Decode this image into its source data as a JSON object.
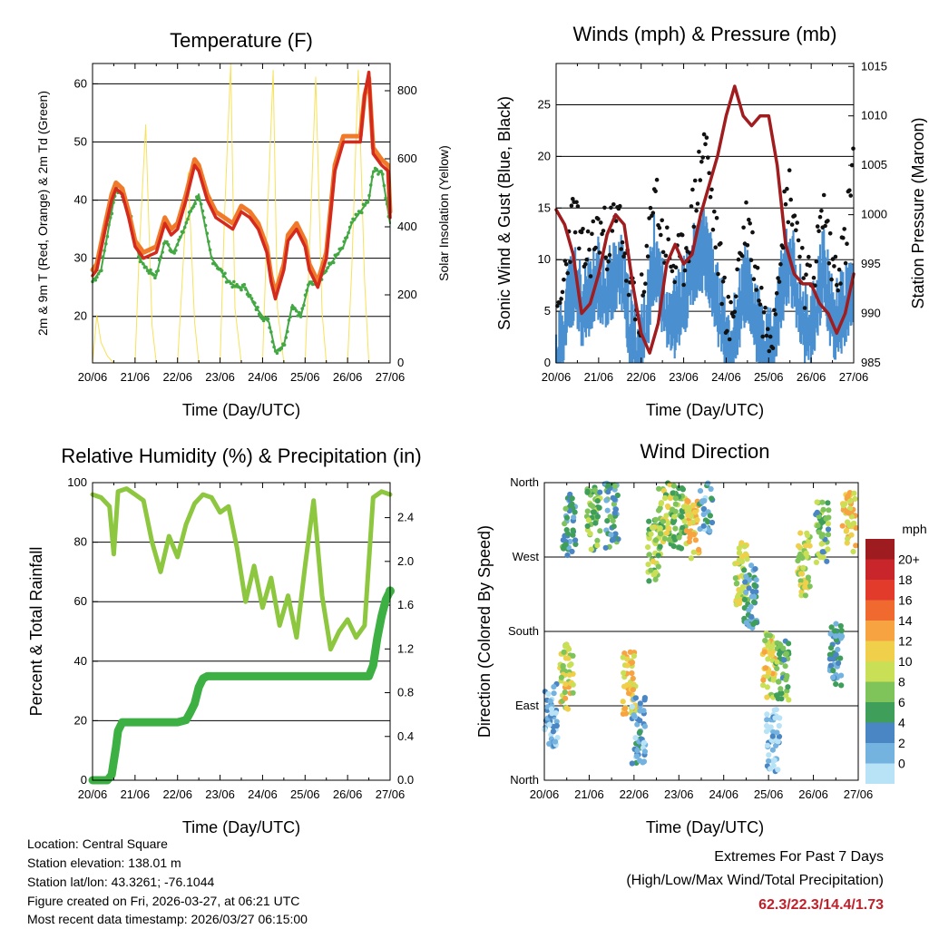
{
  "chart_data": [
    {
      "type": "line",
      "title": "Temperature (F)",
      "xlabel": "Time (Day/UTC)",
      "ylabel": "2m & 9m T (Red, Orange) & 2m Td (Green)",
      "ylabel_right": "Solar Insolation (Yellow)",
      "x_ticks": [
        "20/06",
        "21/06",
        "22/06",
        "23/06",
        "24/06",
        "25/06",
        "26/06",
        "27/06"
      ],
      "xlim": [
        0,
        7
      ],
      "ylim": [
        12,
        63.5
      ],
      "y_ticks": [
        20,
        30,
        40,
        50,
        60
      ],
      "ylim_right": [
        0,
        880
      ],
      "y_ticks_right": [
        0,
        200,
        400,
        600,
        800
      ],
      "series": [
        {
          "name": "2m T",
          "color": "#d42a1e",
          "x": [
            0,
            0.1,
            0.3,
            0.45,
            0.55,
            0.7,
            0.85,
            1.0,
            1.2,
            1.5,
            1.7,
            1.85,
            2.0,
            2.2,
            2.4,
            2.5,
            2.7,
            2.9,
            3.1,
            3.3,
            3.5,
            3.7,
            3.9,
            4.1,
            4.2,
            4.3,
            4.5,
            4.6,
            4.8,
            5.0,
            5.1,
            5.3,
            5.5,
            5.7,
            5.9,
            6.1,
            6.3,
            6.4,
            6.5,
            6.6,
            6.8,
            6.95,
            7.0
          ],
          "values": [
            27,
            28,
            35,
            40,
            42,
            41,
            37,
            32,
            30,
            31,
            36,
            34,
            35,
            40,
            46,
            45,
            40,
            37,
            36,
            35,
            38,
            37,
            35,
            31,
            26,
            23,
            28,
            33,
            35,
            32,
            28,
            25,
            30,
            45,
            50,
            50,
            50,
            58,
            62,
            48,
            46,
            45,
            37
          ]
        },
        {
          "name": "9m T",
          "color": "#f07a2a",
          "x": [
            0,
            0.1,
            0.3,
            0.45,
            0.55,
            0.7,
            0.85,
            1.0,
            1.2,
            1.5,
            1.7,
            1.85,
            2.0,
            2.2,
            2.4,
            2.5,
            2.7,
            2.9,
            3.1,
            3.3,
            3.5,
            3.7,
            3.9,
            4.1,
            4.2,
            4.3,
            4.5,
            4.6,
            4.8,
            5.0,
            5.1,
            5.3,
            5.5,
            5.7,
            5.9,
            6.1,
            6.3,
            6.4,
            6.5,
            6.6,
            6.8,
            6.95,
            7.0
          ],
          "values": [
            28,
            29,
            36,
            41,
            43,
            42,
            38,
            33,
            31,
            32,
            37,
            35,
            36,
            41,
            47,
            46,
            41,
            38,
            37,
            36,
            39,
            38,
            36,
            32,
            27,
            24,
            29,
            34,
            36,
            33,
            29,
            26,
            31,
            46,
            51,
            51,
            51,
            58,
            61,
            49,
            47,
            46,
            38
          ]
        },
        {
          "name": "2m Td",
          "color": "#43a843",
          "x": [
            0,
            0.2,
            0.4,
            0.55,
            0.7,
            0.9,
            1.1,
            1.3,
            1.5,
            1.7,
            1.9,
            2.1,
            2.3,
            2.5,
            2.8,
            3.0,
            3.2,
            3.4,
            3.6,
            3.8,
            4.0,
            4.15,
            4.3,
            4.5,
            4.7,
            4.9,
            5.1,
            5.3,
            5.5,
            5.7,
            5.9,
            6.1,
            6.3,
            6.5,
            6.6,
            6.8,
            7.0
          ],
          "values": [
            26,
            28,
            36,
            42,
            41,
            37,
            30,
            28,
            27,
            33,
            31,
            34,
            38,
            41,
            30,
            28,
            26,
            25,
            25,
            22,
            20,
            19,
            14,
            15,
            22,
            20,
            26,
            26,
            28,
            30,
            32,
            36,
            38,
            40,
            45,
            45,
            36
          ]
        },
        {
          "name": "Solar Insolation",
          "color": "#f8e15a",
          "axis": "right",
          "x": [
            0,
            0.1,
            0.2,
            0.35,
            0.5,
            1.0,
            1.1,
            1.25,
            1.4,
            1.5,
            2.0,
            2.1,
            2.25,
            2.4,
            2.5,
            3.0,
            3.1,
            3.25,
            3.35,
            3.5,
            4.0,
            4.1,
            4.25,
            4.35,
            4.5,
            5.0,
            5.1,
            5.25,
            5.4,
            5.5,
            6.0,
            6.1,
            6.25,
            6.4,
            6.5,
            7.0
          ],
          "values": [
            0,
            140,
            60,
            20,
            0,
            0,
            330,
            700,
            110,
            0,
            0,
            220,
            560,
            120,
            0,
            0,
            420,
            880,
            160,
            0,
            0,
            380,
            860,
            160,
            0,
            0,
            320,
            840,
            150,
            0,
            0,
            280,
            860,
            240,
            0,
            0
          ]
        }
      ]
    },
    {
      "type": "line",
      "title": "Winds (mph) & Pressure (mb)",
      "xlabel": "Time (Day/UTC)",
      "ylabel": "Sonic Wind & Gust (Blue, Black)",
      "ylabel_right": "Station Pressure (Maroon)",
      "x_ticks": [
        "20/06",
        "21/06",
        "22/06",
        "23/06",
        "24/06",
        "25/06",
        "26/06",
        "27/06"
      ],
      "xlim": [
        0,
        7
      ],
      "ylim": [
        0,
        29
      ],
      "y_ticks": [
        0,
        5,
        10,
        15,
        20,
        25
      ],
      "ylim_right": [
        985,
        1015.3
      ],
      "y_ticks_right": [
        985,
        990,
        995,
        1000,
        1005,
        1010,
        1015
      ],
      "series": [
        {
          "name": "Sonic Wind",
          "color": "#4a90d0",
          "x": [
            0,
            0.1,
            0.3,
            0.45,
            0.6,
            0.8,
            1.0,
            1.2,
            1.5,
            1.7,
            1.9,
            2.1,
            2.3,
            2.5,
            2.8,
            3.0,
            3.2,
            3.5,
            3.7,
            3.9,
            4.1,
            4.3,
            4.5,
            4.7,
            4.9,
            5.1,
            5.3,
            5.5,
            5.7,
            5.9,
            6.1,
            6.3,
            6.5,
            6.8,
            7.0
          ],
          "values": [
            1,
            3,
            7,
            9,
            6,
            7,
            9,
            8,
            10,
            5,
            2,
            4,
            11,
            7,
            5,
            7,
            10,
            12,
            8,
            5,
            1,
            6,
            9,
            5,
            2,
            2,
            8,
            11,
            7,
            4,
            6,
            10,
            5,
            6,
            9
          ]
        },
        {
          "name": "Gust",
          "color": "#111111",
          "x": [
            0,
            0.1,
            0.3,
            0.45,
            0.6,
            0.8,
            1.0,
            1.2,
            1.5,
            1.7,
            1.9,
            2.1,
            2.3,
            2.5,
            2.8,
            3.0,
            3.2,
            3.5,
            3.7,
            3.9,
            4.1,
            4.3,
            4.5,
            4.7,
            4.9,
            5.1,
            5.3,
            5.5,
            5.7,
            5.9,
            6.1,
            6.3,
            6.5,
            6.8,
            7.0
          ],
          "values": [
            2,
            5,
            12,
            15,
            10,
            11,
            13,
            12,
            14,
            8,
            4,
            7,
            18,
            12,
            9,
            10,
            14,
            22,
            14,
            8,
            3,
            10,
            14,
            9,
            4,
            4,
            13,
            17,
            12,
            7,
            10,
            15,
            9,
            11,
            20
          ]
        },
        {
          "name": "Station Pressure",
          "color": "#a01c1e",
          "axis": "right",
          "x": [
            0,
            0.2,
            0.4,
            0.6,
            0.8,
            1.0,
            1.2,
            1.4,
            1.6,
            1.8,
            2.0,
            2.2,
            2.4,
            2.6,
            2.8,
            3.0,
            3.2,
            3.4,
            3.6,
            3.8,
            4.0,
            4.2,
            4.4,
            4.6,
            4.8,
            5.0,
            5.2,
            5.4,
            5.6,
            5.8,
            6.0,
            6.2,
            6.4,
            6.6,
            6.8,
            7.0
          ],
          "values": [
            1000.5,
            999,
            996,
            990,
            991,
            994,
            998,
            1000,
            999,
            993,
            988,
            986,
            989,
            995,
            997,
            995,
            996,
            1000,
            1003,
            1006,
            1010,
            1013,
            1010,
            1009,
            1010,
            1010,
            1005,
            997,
            994,
            993,
            993,
            991,
            990,
            988,
            990,
            994
          ]
        }
      ]
    },
    {
      "type": "line",
      "title": "Relative Humidity (%) & Precipitation (in)",
      "xlabel": "Time (Day/UTC)",
      "ylabel": "Percent & Total Rainfall",
      "x_ticks": [
        "20/06",
        "21/06",
        "22/06",
        "23/06",
        "24/06",
        "25/06",
        "26/06",
        "27/06"
      ],
      "xlim": [
        0,
        7
      ],
      "ylim": [
        0,
        100
      ],
      "y_ticks": [
        0,
        20,
        40,
        60,
        80,
        100
      ],
      "ylim_right": [
        0,
        2.72
      ],
      "y_ticks_right": [
        "0.0",
        "0.4",
        "0.8",
        "1.2",
        "1.6",
        "2.0",
        "2.4"
      ],
      "series": [
        {
          "name": "Relative Humidity",
          "color": "#8dc63f",
          "x": [
            0,
            0.2,
            0.4,
            0.5,
            0.6,
            0.8,
            1.0,
            1.2,
            1.4,
            1.6,
            1.8,
            2.0,
            2.2,
            2.4,
            2.6,
            2.8,
            3.0,
            3.2,
            3.4,
            3.6,
            3.8,
            4.0,
            4.2,
            4.4,
            4.6,
            4.8,
            5.0,
            5.2,
            5.4,
            5.6,
            5.8,
            6.0,
            6.2,
            6.4,
            6.6,
            6.8,
            7.0
          ],
          "values": [
            96,
            95,
            92,
            76,
            97,
            98,
            96,
            94,
            80,
            70,
            82,
            75,
            86,
            93,
            96,
            95,
            90,
            92,
            78,
            60,
            72,
            58,
            68,
            52,
            62,
            48,
            72,
            94,
            62,
            44,
            50,
            54,
            48,
            52,
            95,
            97,
            96
          ]
        },
        {
          "name": "Total Precipitation",
          "color": "#3cb043",
          "x": [
            0,
            0.35,
            0.45,
            0.55,
            0.6,
            0.7,
            1.0,
            1.5,
            2.0,
            2.2,
            2.3,
            2.4,
            2.5,
            2.6,
            2.7,
            3.0,
            4.0,
            5.0,
            6.0,
            6.5,
            6.6,
            6.7,
            6.8,
            6.9,
            7.0
          ],
          "values": [
            0,
            0,
            0.05,
            0.3,
            0.45,
            0.53,
            0.53,
            0.53,
            0.53,
            0.55,
            0.62,
            0.7,
            0.85,
            0.93,
            0.95,
            0.95,
            0.95,
            0.95,
            0.95,
            0.95,
            1.05,
            1.3,
            1.5,
            1.65,
            1.73
          ],
          "axis": "right"
        }
      ]
    },
    {
      "type": "scatter",
      "title": "Wind Direction",
      "xlabel": "Time (Day/UTC)",
      "ylabel": "Direction (Colored By Speed)",
      "x_ticks": [
        "20/06",
        "21/06",
        "22/06",
        "23/06",
        "24/06",
        "25/06",
        "26/06",
        "27/06"
      ],
      "xlim": [
        0,
        7
      ],
      "ylim": [
        0,
        360
      ],
      "y_tick_labels": [
        "North",
        "East",
        "South",
        "West",
        "North"
      ],
      "y_tick_values": [
        0,
        90,
        180,
        270,
        360
      ],
      "colorbar_label": "mph",
      "colorbar_ticks": [
        "20+",
        "18",
        "16",
        "14",
        "12",
        "10",
        "8",
        "6",
        "4",
        "2",
        "0"
      ],
      "colorbar_colors": [
        "#9e1b1f",
        "#c8262a",
        "#e23b2c",
        "#f06a30",
        "#f7a342",
        "#f0cf4a",
        "#c9df55",
        "#7ec45a",
        "#3f9e5a",
        "#4a86c4",
        "#74b3e0",
        "#b8e2f5"
      ],
      "clusters": [
        {
          "x": 0.55,
          "dir": 310,
          "speed": 5
        },
        {
          "x": 1.1,
          "dir": 315,
          "speed": 7
        },
        {
          "x": 1.5,
          "dir": 320,
          "speed": 5
        },
        {
          "x": 0.5,
          "dir": 125,
          "speed": 11
        },
        {
          "x": 0.15,
          "dir": 80,
          "speed": 2
        },
        {
          "x": 1.9,
          "dir": 120,
          "speed": 12
        },
        {
          "x": 2.1,
          "dir": 60,
          "speed": 3
        },
        {
          "x": 2.45,
          "dir": 280,
          "speed": 9
        },
        {
          "x": 2.7,
          "dir": 325,
          "speed": 9
        },
        {
          "x": 3.0,
          "dir": 320,
          "speed": 8
        },
        {
          "x": 3.3,
          "dir": 305,
          "speed": 12
        },
        {
          "x": 3.6,
          "dir": 340,
          "speed": 3
        },
        {
          "x": 4.4,
          "dir": 250,
          "speed": 10
        },
        {
          "x": 4.6,
          "dir": 220,
          "speed": 4
        },
        {
          "x": 5.0,
          "dir": 140,
          "speed": 11
        },
        {
          "x": 5.3,
          "dir": 130,
          "speed": 7
        },
        {
          "x": 5.1,
          "dir": 50,
          "speed": 1
        },
        {
          "x": 5.8,
          "dir": 260,
          "speed": 10
        },
        {
          "x": 6.2,
          "dir": 300,
          "speed": 7
        },
        {
          "x": 6.5,
          "dir": 150,
          "speed": 4
        },
        {
          "x": 6.8,
          "dir": 310,
          "speed": 12
        }
      ]
    }
  ],
  "footer": {
    "location": "Location: Central Square",
    "elevation": "Station elevation: 138.01 m",
    "latlon": "Station lat/lon: 43.3261; -76.1044",
    "created": "Figure created on Fri, 2026-03-27, at 06:21 UTC",
    "recent": "Most recent data timestamp: 2026/03/27 06:15:00"
  },
  "extremes": {
    "title": "Extremes For Past 7 Days",
    "subtitle": "(High/Low/Max Wind/Total Precipitation)",
    "values": "62.3/22.3/14.4/1.73"
  }
}
